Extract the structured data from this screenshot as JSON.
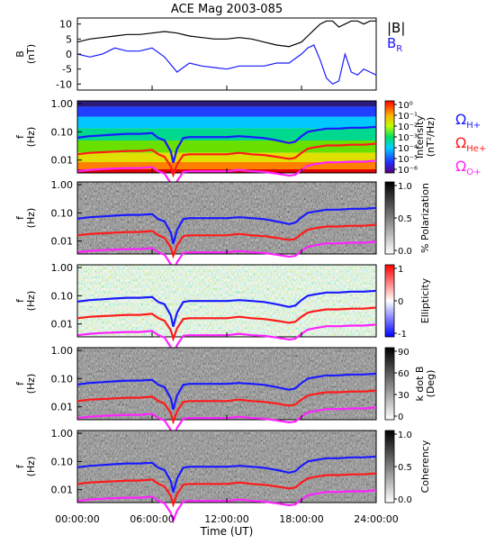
{
  "title": "ACE Mag 2003-085",
  "colors": {
    "btotal": "#000000",
    "br": "#1a1aff",
    "h_plus": "#1a1aff",
    "he_plus": "#ff1a1a",
    "o_plus": "#ff22ff"
  },
  "x_axis": {
    "label": "Time (UT)",
    "ticks": [
      "00:00:00",
      "06:00:00",
      "12:00:00",
      "18:00:00",
      "24:00:00"
    ],
    "range_hours": [
      0,
      24
    ]
  },
  "chart_data": [
    {
      "type": "line",
      "ylabel": [
        "B",
        "(nT)"
      ],
      "ylim": [
        -12,
        12
      ],
      "yticks": [
        "10",
        "5",
        "0",
        "-5",
        "-10"
      ],
      "ytick_values": [
        10,
        5,
        0,
        -5,
        -10
      ],
      "legend": [
        "|B|",
        "B",
        "R"
      ],
      "series": [
        {
          "name": "|B|",
          "x": [
            0,
            1,
            2,
            3,
            4,
            5,
            6,
            7,
            8,
            9,
            10,
            11,
            12,
            13,
            14,
            15,
            16,
            17,
            18,
            18.5,
            19,
            19.5,
            20,
            20.5,
            21,
            21.5,
            22,
            22.5,
            23,
            23.5,
            24
          ],
          "values": [
            4,
            5,
            5.5,
            6,
            6.5,
            6.5,
            7,
            7.5,
            7,
            6,
            5.5,
            5,
            5,
            5.5,
            5,
            4,
            3,
            2.5,
            4,
            6,
            8,
            10,
            11,
            11,
            9,
            10,
            11,
            11,
            10,
            11,
            11
          ]
        },
        {
          "name": "B_R",
          "x": [
            0,
            1,
            2,
            3,
            4,
            5,
            6,
            7,
            8,
            9,
            10,
            11,
            12,
            13,
            14,
            15,
            16,
            17,
            18,
            18.5,
            19,
            19.5,
            20,
            20.5,
            21,
            21.5,
            22,
            22.5,
            23,
            23.5,
            24
          ],
          "values": [
            0,
            -1,
            0,
            2,
            1,
            1,
            2,
            -1,
            -6,
            -3,
            -4,
            -4.5,
            -5,
            -4,
            -4,
            -4,
            -3,
            -3,
            0,
            2,
            3,
            -2,
            -8,
            -10,
            -9,
            0,
            -6,
            -7,
            -5,
            -6,
            -7
          ]
        }
      ]
    },
    {
      "type": "heatmap",
      "ylabel": [
        "f",
        "(Hz)"
      ],
      "yticks": [
        "1.00",
        "0.10",
        "0.01"
      ],
      "colorbar_label": [
        "Intensity",
        "(nT²/Hz)"
      ],
      "colorbar_ticks": [
        "10⁰",
        "10⁻¹",
        "10⁻²",
        "10⁻³",
        "10⁻⁴",
        "10⁻⁵",
        "10⁻⁶"
      ],
      "colormap": "rainbow",
      "legend": [
        {
          "name": "Ω",
          "sub": "H+"
        },
        {
          "name": "Ω",
          "sub": "He+"
        },
        {
          "name": "Ω",
          "sub": "O+"
        }
      ]
    },
    {
      "type": "heatmap",
      "ylabel": [
        "f",
        "(Hz)"
      ],
      "yticks": [
        "1.00",
        "0.10",
        "0.01"
      ],
      "colorbar_label": [
        "% Polarization"
      ],
      "colorbar_ticks": [
        "1.0",
        "0.5",
        "0.0"
      ],
      "colormap": "gray"
    },
    {
      "type": "heatmap",
      "ylabel": [
        "f",
        "(Hz)"
      ],
      "yticks": [
        "1.00",
        "0.10",
        "0.01"
      ],
      "colorbar_label": [
        "Ellipticity"
      ],
      "colorbar_ticks": [
        "1",
        "0",
        "-1"
      ],
      "colormap": "bwr"
    },
    {
      "type": "heatmap",
      "ylabel": [
        "f",
        "(Hz)"
      ],
      "yticks": [
        "1.00",
        "0.10",
        "0.01"
      ],
      "colorbar_label": [
        "k dot B",
        "(Deg)"
      ],
      "colorbar_ticks": [
        "90",
        "60",
        "30",
        "0"
      ],
      "colormap": "gray"
    },
    {
      "type": "heatmap",
      "ylabel": [
        "f",
        "(Hz)"
      ],
      "yticks": [
        "1.00",
        "0.10",
        "0.01"
      ],
      "colorbar_label": [
        "Coherency"
      ],
      "colorbar_ticks": [
        "1.0",
        "0.5",
        "0.0"
      ],
      "colormap": "gray"
    }
  ],
  "gyrofrequency_lines": {
    "x": [
      0,
      1,
      2,
      3,
      4,
      5,
      6,
      6.5,
      7,
      7.5,
      7.7,
      8,
      8.5,
      9,
      10,
      11,
      12,
      13,
      14,
      15,
      16,
      17,
      17.5,
      18,
      18.5,
      19,
      20,
      21,
      22,
      23,
      24
    ],
    "h_plus_hz": [
      0.062,
      0.07,
      0.075,
      0.08,
      0.085,
      0.085,
      0.09,
      0.06,
      0.05,
      0.02,
      0.008,
      0.025,
      0.06,
      0.065,
      0.065,
      0.065,
      0.065,
      0.07,
      0.065,
      0.06,
      0.05,
      0.04,
      0.045,
      0.07,
      0.1,
      0.11,
      0.13,
      0.13,
      0.14,
      0.14,
      0.15
    ],
    "he_plus_hz": [
      0.016,
      0.018,
      0.019,
      0.02,
      0.021,
      0.021,
      0.023,
      0.016,
      0.013,
      0.006,
      0.003,
      0.007,
      0.015,
      0.016,
      0.016,
      0.016,
      0.016,
      0.018,
      0.016,
      0.015,
      0.013,
      0.011,
      0.012,
      0.018,
      0.025,
      0.028,
      0.033,
      0.033,
      0.035,
      0.035,
      0.038
    ],
    "o_plus_hz": [
      0.004,
      0.0045,
      0.0048,
      0.005,
      0.0052,
      0.0052,
      0.0057,
      0.004,
      0.0033,
      0.0015,
      0.0008,
      0.0018,
      0.0038,
      0.004,
      0.004,
      0.004,
      0.004,
      0.0045,
      0.004,
      0.0038,
      0.0033,
      0.0028,
      0.003,
      0.0045,
      0.0063,
      0.007,
      0.0083,
      0.0083,
      0.0088,
      0.0088,
      0.0095
    ]
  }
}
